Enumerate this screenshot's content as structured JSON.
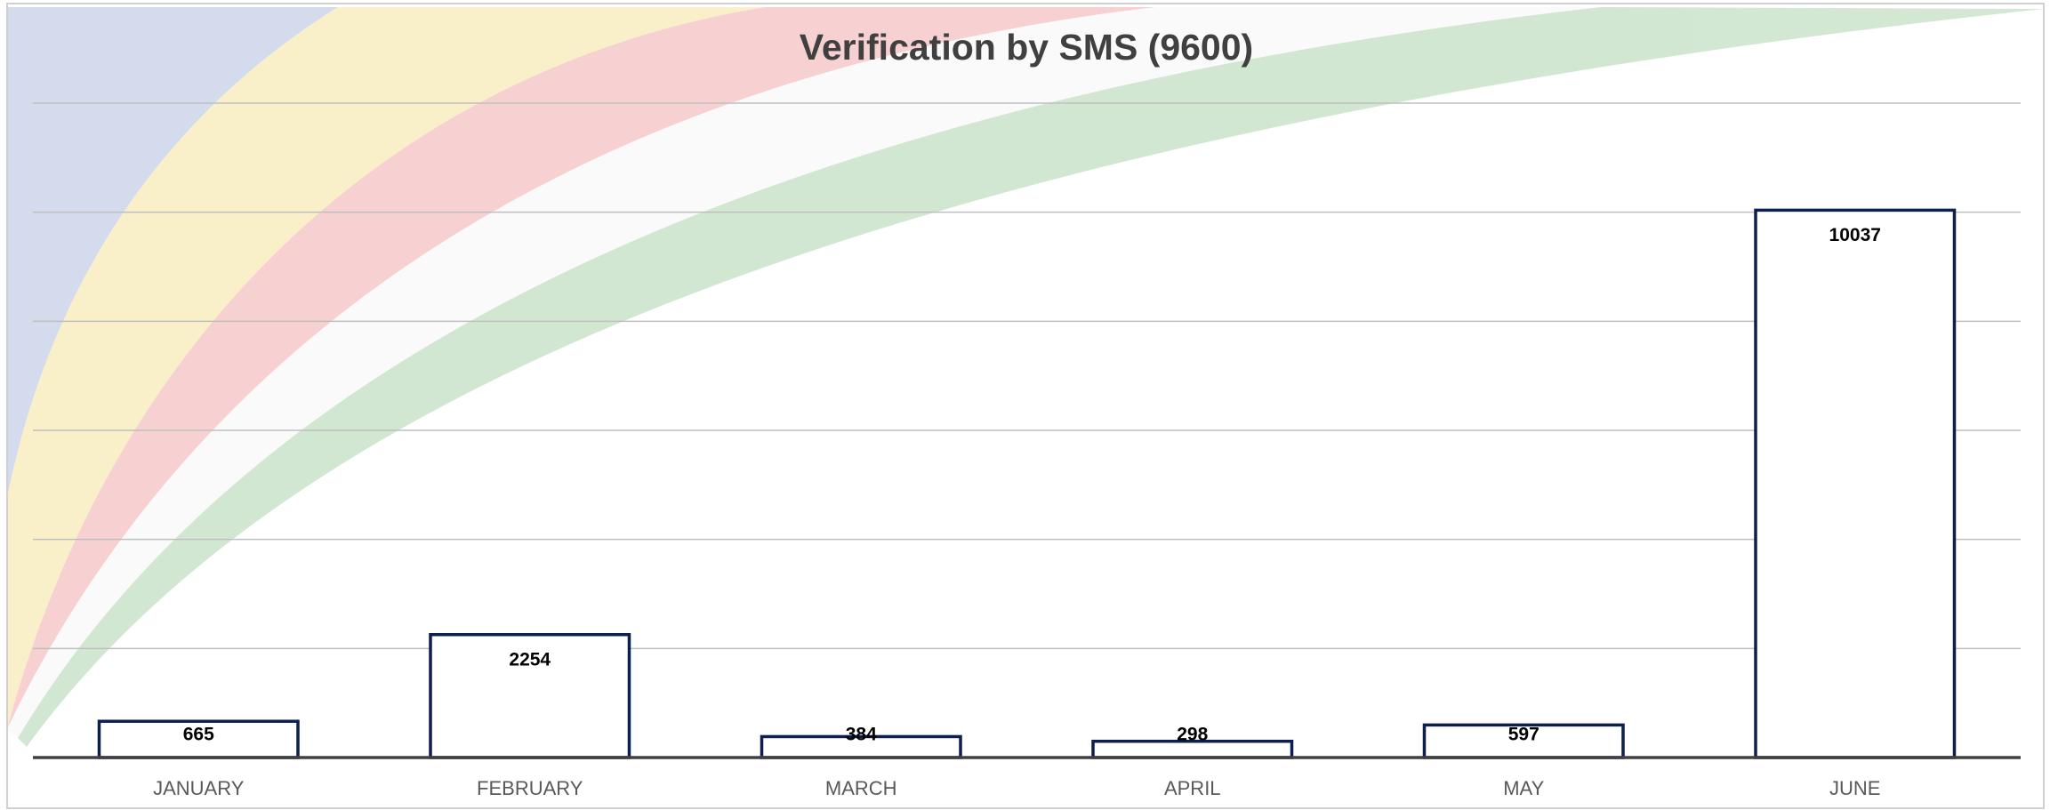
{
  "chart_data": {
    "type": "bar",
    "title": "Verification by SMS (9600)",
    "categories": [
      "JANUARY",
      "FEBRUARY",
      "MARCH",
      "APRIL",
      "MAY",
      "JUNE"
    ],
    "values": [
      665,
      2254,
      384,
      298,
      597,
      10037
    ],
    "color": "#0d1f4f",
    "ylim": [
      0,
      12000
    ],
    "yticks": [
      0,
      2000,
      4000,
      6000,
      8000,
      10000,
      12000
    ],
    "grid": true
  }
}
